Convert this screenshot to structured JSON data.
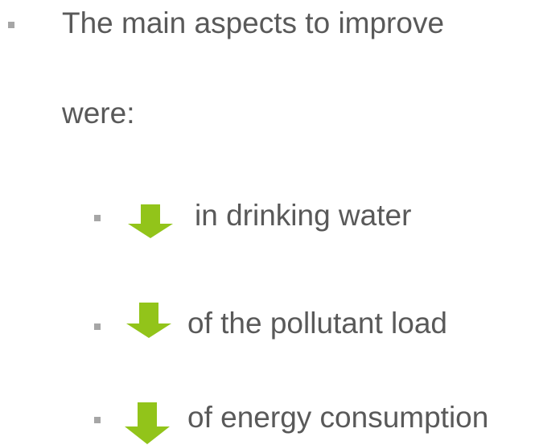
{
  "list": {
    "heading": [
      "The main aspects to improve",
      "were:"
    ],
    "items": [
      "in drinking water",
      "of the pollutant load",
      "of energy consumption"
    ]
  }
}
